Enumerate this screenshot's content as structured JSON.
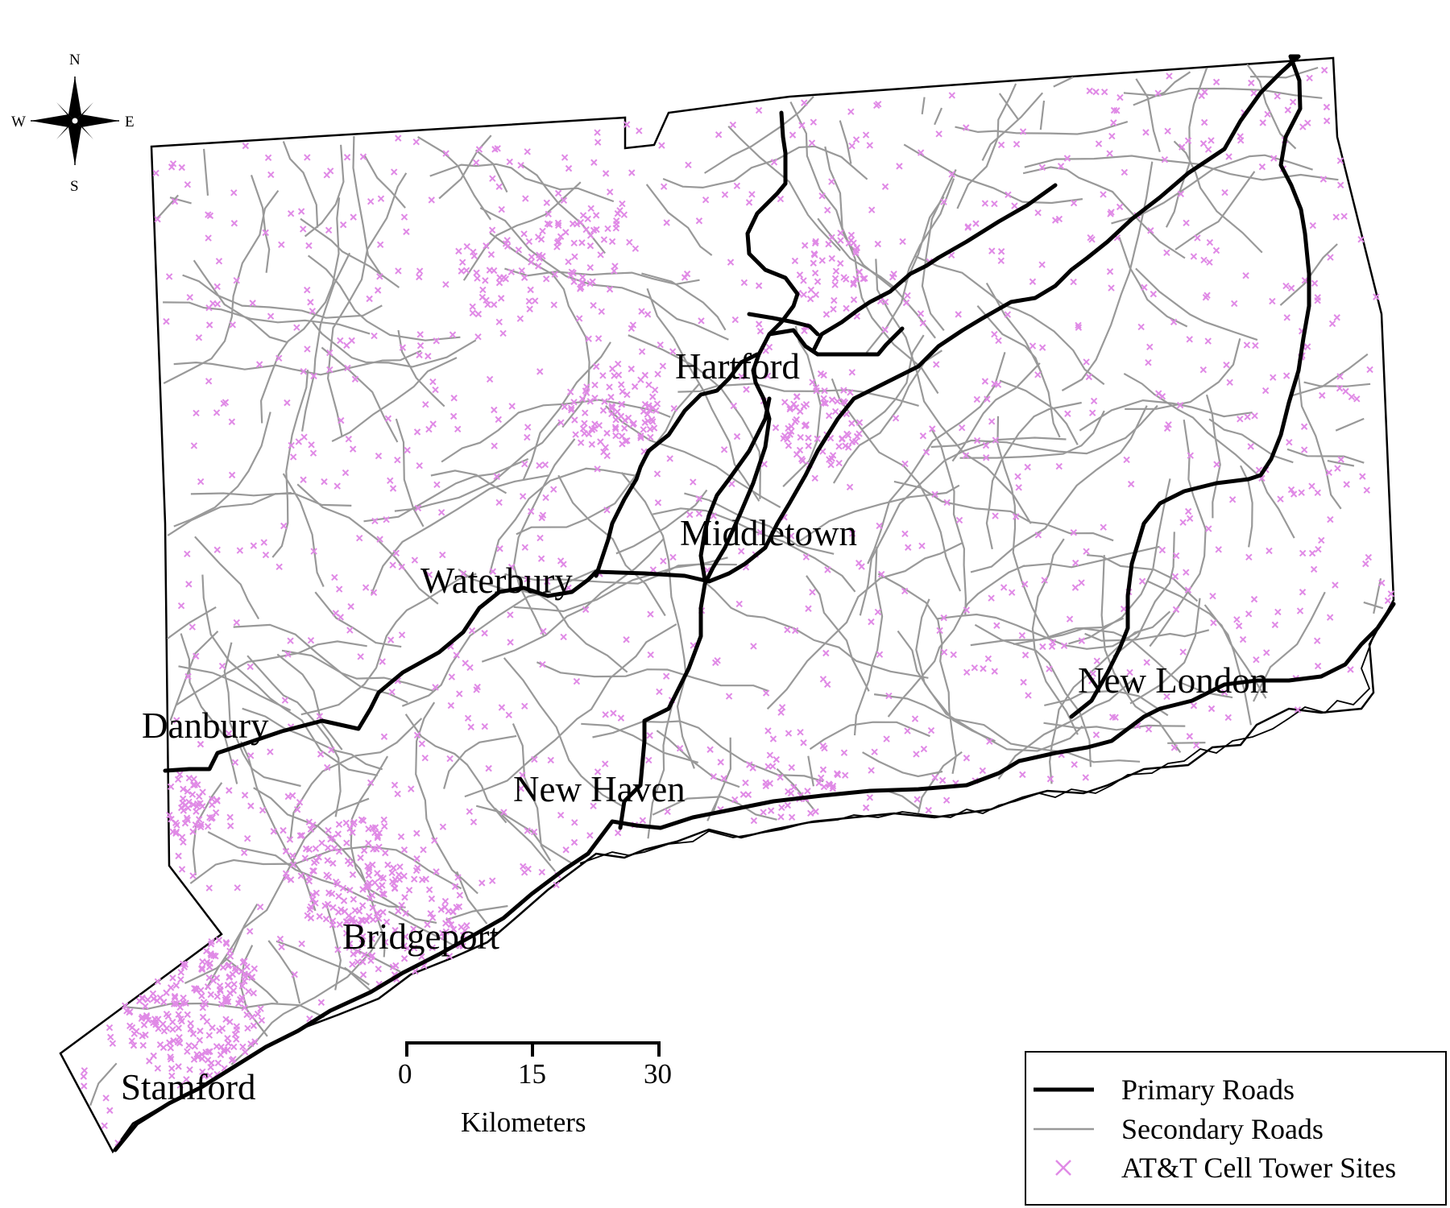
{
  "compass": {
    "n": "N",
    "s": "S",
    "e": "E",
    "w": "W"
  },
  "cities": {
    "hartford": "Hartford",
    "middletown": "Middletown",
    "waterbury": "Waterbury",
    "danbury": "Danbury",
    "new_haven": "New Haven",
    "new_london": "New London",
    "bridgeport": "Bridgeport",
    "stamford": "Stamford"
  },
  "scale_bar": {
    "ticks": [
      "0",
      "15",
      "30"
    ],
    "unit": "Kilometers"
  },
  "legend": {
    "primary": "Primary Roads",
    "secondary": "Secondary Roads",
    "towers": "AT&T Cell Tower Sites"
  },
  "colors": {
    "primary_road": "#000000",
    "secondary_road": "#999999",
    "tower": "#e08ae6",
    "outline": "#000000"
  }
}
